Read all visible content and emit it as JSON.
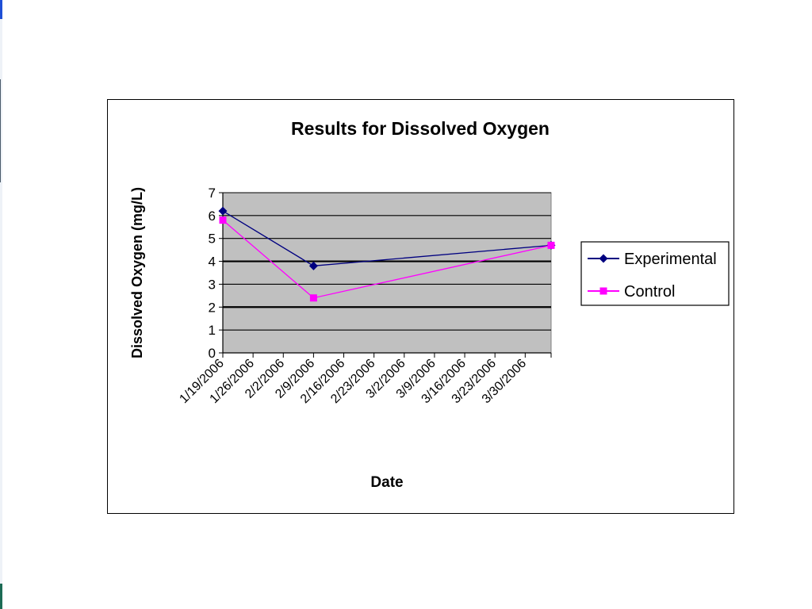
{
  "chart_data": {
    "type": "line",
    "title": "Results for Dissolved Oxygen",
    "xlabel": "Date",
    "ylabel": "Dissolved Oxygen  (mg/L)",
    "x_tick_labels": [
      "1/19/2006",
      "1/26/2006",
      "2/2/2006",
      "2/9/2006",
      "2/16/2006",
      "2/23/2006",
      "3/2/2006",
      "3/9/2006",
      "3/16/2006",
      "3/23/2006",
      "3/30/2006"
    ],
    "y_tick_labels": [
      "0",
      "1",
      "2",
      "3",
      "4",
      "5",
      "6",
      "7"
    ],
    "ylim": [
      0,
      7
    ],
    "xlim": [
      "1/19/2006",
      "4/5/2006"
    ],
    "grid": "horizontal",
    "legend_position": "right",
    "plot_background": "#c0c0c0",
    "series": [
      {
        "name": "Experimental",
        "color": "#000080",
        "marker": "diamond",
        "points": [
          {
            "x": "1/19/2006",
            "y": 6.2
          },
          {
            "x": "2/9/2006",
            "y": 3.8
          },
          {
            "x": "4/5/2006",
            "y": 4.7
          }
        ]
      },
      {
        "name": "Control",
        "color": "#ff00ff",
        "marker": "square",
        "points": [
          {
            "x": "1/19/2006",
            "y": 5.8
          },
          {
            "x": "2/9/2006",
            "y": 2.4
          },
          {
            "x": "4/5/2006",
            "y": 4.7
          }
        ]
      }
    ]
  }
}
